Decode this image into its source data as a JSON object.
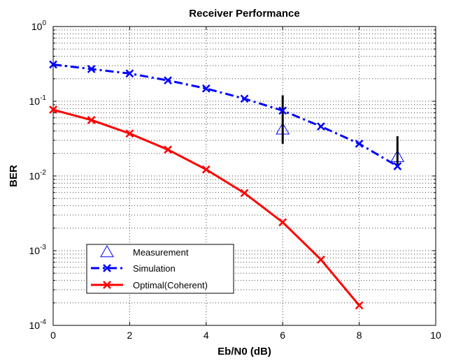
{
  "chart_data": {
    "type": "line",
    "title": "Receiver Performance",
    "xlabel": "Eb/N0 (dB)",
    "ylabel": "BER",
    "xlim": [
      0,
      10
    ],
    "ylim": [
      0.0001,
      1
    ],
    "yscale": "log",
    "grid": true,
    "x_ticks": [
      0,
      2,
      4,
      6,
      8,
      10
    ],
    "y_ticks": [
      0.0001,
      0.001,
      0.01,
      0.1,
      1
    ],
    "y_tick_labels": [
      {
        "base": "10",
        "exp": "-4"
      },
      {
        "base": "10",
        "exp": "-3"
      },
      {
        "base": "10",
        "exp": "-2"
      },
      {
        "base": "10",
        "exp": "-1"
      },
      {
        "base": "10",
        "exp": "0"
      }
    ],
    "legend_position": "bottom-left",
    "series": [
      {
        "name": "Measurement",
        "color": "#0000ff",
        "line": "none",
        "marker": "triangle",
        "x": [
          6,
          9
        ],
        "y": [
          0.042,
          0.018
        ],
        "error_low": [
          0.027,
          0.0135
        ],
        "error_high": [
          0.12,
          0.034
        ],
        "error_color": "#000000"
      },
      {
        "name": "Simulation",
        "color": "#0000ff",
        "line": "dashdot",
        "marker": "x",
        "x": [
          0,
          1,
          2,
          3,
          4,
          5,
          6,
          7,
          8,
          9
        ],
        "y": [
          0.31,
          0.27,
          0.235,
          0.19,
          0.148,
          0.108,
          0.075,
          0.046,
          0.027,
          0.0135
        ]
      },
      {
        "name": "Optimal(Coherent)",
        "color": "#ff0000",
        "line": "solid",
        "marker": "x",
        "x": [
          0,
          1,
          2,
          3,
          4,
          5,
          6,
          7,
          8
        ],
        "y": [
          0.077,
          0.056,
          0.037,
          0.0225,
          0.0122,
          0.0059,
          0.0024,
          0.00076,
          0.000185
        ]
      }
    ]
  }
}
